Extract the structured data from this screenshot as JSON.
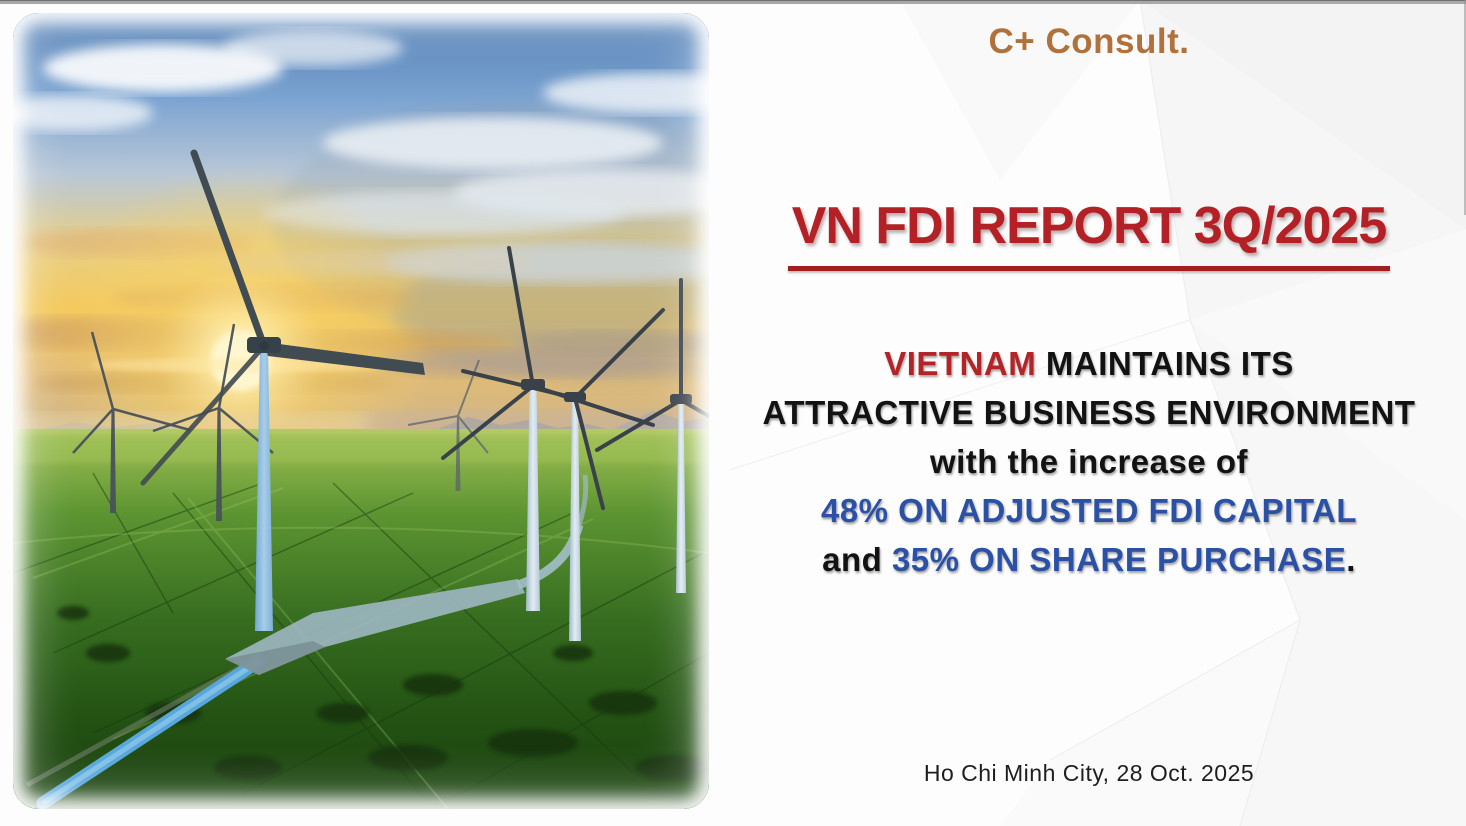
{
  "logo": {
    "text": "C+ Consult."
  },
  "title": {
    "text": "VN FDI REPORT 3Q/2025"
  },
  "headline": {
    "lines": [
      {
        "segments": [
          {
            "text": "VIETNAM ",
            "color_key": "vietnam_red"
          },
          {
            "text": "MAINTAINS ITS",
            "color_key": "body_dark"
          }
        ]
      },
      {
        "segments": [
          {
            "text": "ATTRACTIVE BUSINESS ENVIRONMENT",
            "color_key": "body_dark"
          }
        ]
      },
      {
        "segments": [
          {
            "text": "with the increase of",
            "color_key": "body_dark"
          }
        ]
      },
      {
        "segments": [
          {
            "text": "48% ON ADJUSTED FDI CAPITAL",
            "color_key": "body_blue"
          }
        ]
      },
      {
        "segments": [
          {
            "text": "and ",
            "color_key": "body_dark"
          },
          {
            "text": "35% ON SHARE PURCHASE",
            "color_key": "body_blue"
          },
          {
            "text": ".",
            "color_key": "body_dark"
          }
        ]
      }
    ]
  },
  "date_line": "Ho Chi Minh City, 28 Oct. 2025",
  "photo": {
    "description": "Aerial photo of wind turbines standing in bright green rice fields, with a winding blue canal road, under a golden sunset sky topped by blue sky and white clouds"
  },
  "colors": {
    "title_red": "#B32025",
    "underline_red": "#A21E21",
    "vietnam_red": "#B22428",
    "body_dark": "#121212",
    "body_blue": "#2B51A6",
    "logo_brown": "#B1713C",
    "date_dark": "#1E1E1E"
  }
}
